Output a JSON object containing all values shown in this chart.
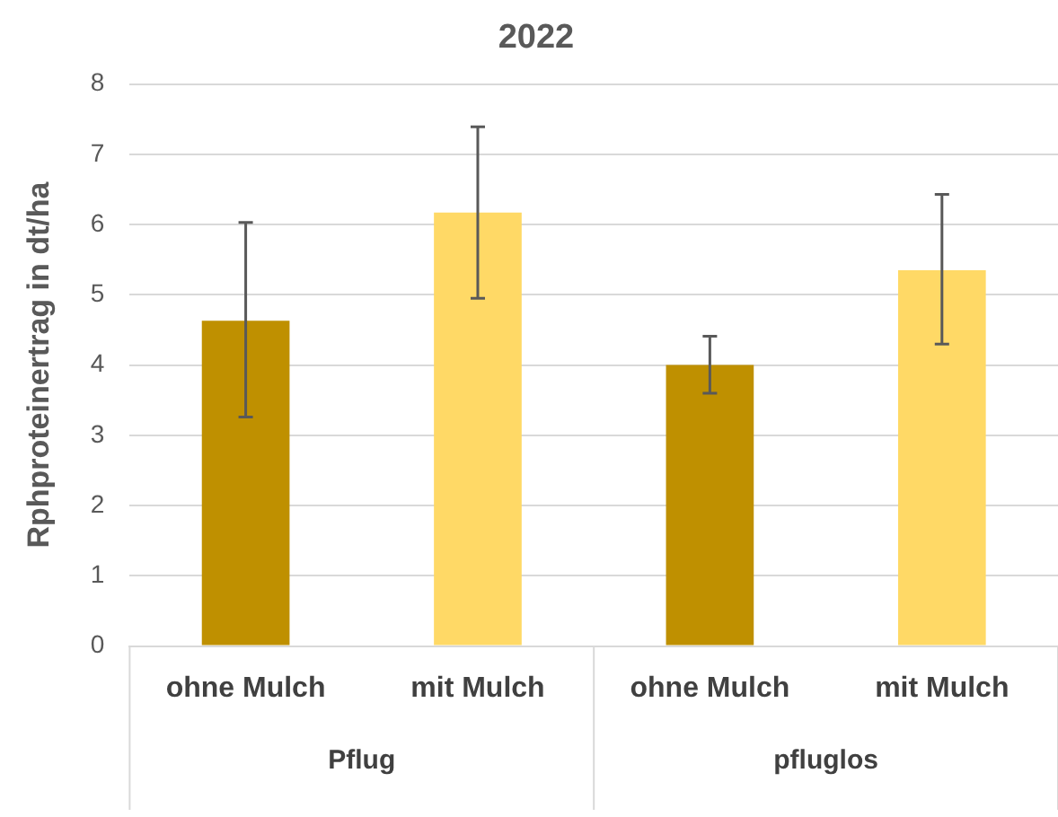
{
  "chart_data": {
    "type": "bar",
    "title": "2022",
    "ylabel": "Rphproteinertrag in dt/ha",
    "categories": [
      "ohne Mulch",
      "mit Mulch",
      "ohne Mulch",
      "mit Mulch"
    ],
    "values": [
      4.63,
      6.17,
      4.0,
      5.35
    ],
    "colors": [
      "#bf9000",
      "#ffd966",
      "#bf9000",
      "#ffd966"
    ],
    "errors": [
      [
        3.26,
        6.03
      ],
      [
        4.95,
        7.39
      ],
      [
        3.6,
        4.41
      ],
      [
        4.3,
        6.43
      ]
    ],
    "annotations": [
      "Pflug",
      "pfluglos"
    ],
    "ylim": [
      0,
      8
    ],
    "yticks": [
      0,
      1,
      2,
      3,
      4,
      5,
      6,
      7,
      8
    ],
    "grid": "y",
    "legend": false
  }
}
